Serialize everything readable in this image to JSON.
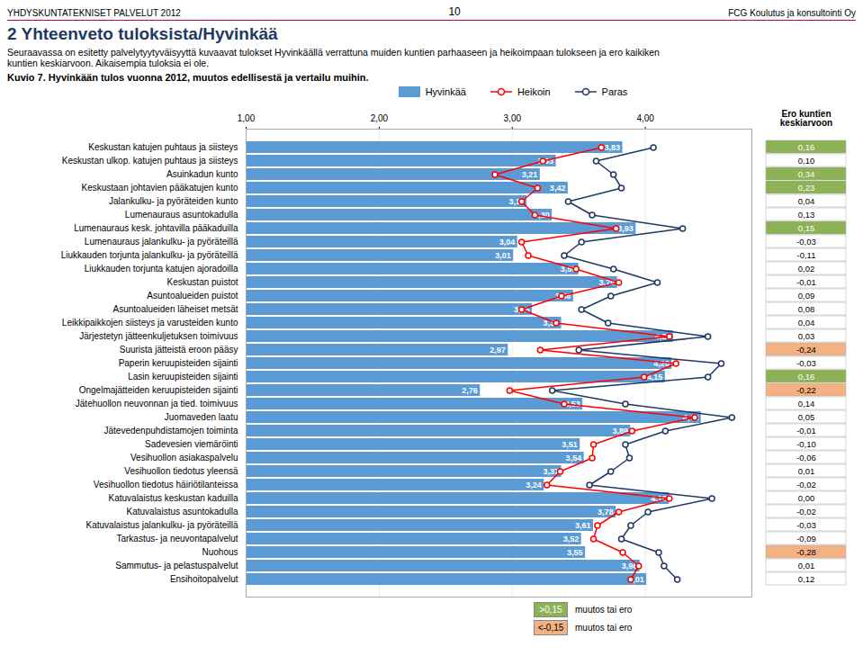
{
  "chart_data": {
    "type": "bar",
    "orientation": "horizontal",
    "title": "2 Yhteenveto tuloksista/Hyvinkää",
    "subtitle": "Seuraavassa on esitetty palvelytyytyväisyyttä kuvaavat tulokset Hyvinkäällä verrattuna muiden kuntien parhaaseen ja heikoimpaan tulokseen ja ero kaikiken\nkuntien keskiarvoon. Aikaisempia tuloksia ei ole.",
    "annotations": [
      "YHDYSKUNTATEKNISET PALVELUT 2012",
      "10",
      "FCG Koulutus ja konsultointi Oy",
      "Kuvio 7. Hyvinkään tulos vuonna 2012, muutos edellisestä ja vertailu muihin."
    ],
    "categories": [
      "Keskustan katujen puhtaus ja siisteys",
      "Keskustan ulkop. katujen puhtaus ja siisteys",
      "Asuinkadun kunto",
      "Keskustaan johtavien pääkatujen kunto",
      "Jalankulku- ja pyöräteiden kunto",
      "Lumenauraus asuntokadulla",
      "Lumenauraus kesk. johtavilla pääkaduilla",
      "Lumenauraus jalankulku- ja pyöräteillä",
      "Liukkauden torjunta jalankulku- ja pyöräteillä",
      "Liukkauden torjunta katujen ajoradoilla",
      "Keskustan puistot",
      "Asuntoalueiden puistot",
      "Asuntoalueiden läheiset metsät",
      "Leikkipaikkojen siisteys ja varusteiden kunto",
      "Järjestetyn jätteenkuljetuksen toimivuus",
      "Suurista jätteistä eroon pääsy",
      "Paperin keruupisteiden sijainti",
      "Lasin keruupisteiden sijainti",
      "Ongelmajätteiden keruupisteiden sijainti",
      "Jätehuollon neuvonnan ja tied. toimivuus",
      "Juomaveden laatu",
      "Jätevedenpuhdistamojen toiminta",
      "Sadevesien viemäröinti",
      "Vesihuollon asiakaspalvelu",
      "Vesihuollon tiedotus yleensä",
      "Vesihuollon tiedotus häiriötilanteissa",
      "Katuvalaistus keskustan kaduilla",
      "Katuvalaistus asuntokadulla",
      "Katuvalaistus jalankulku- ja pyöräteillä",
      "Tarkastus- ja neuvontapalvelut",
      "Nuohous",
      "Sammutus- ja pelastuspalvelut",
      "Ensihoitopalvelut"
    ],
    "series": [
      {
        "name": "Hyvinkää",
        "type": "bar",
        "color": "#5B9BD5",
        "values": [
          3.83,
          3.33,
          3.21,
          3.42,
          3.11,
          3.3,
          3.93,
          3.04,
          3.01,
          3.5,
          3.79,
          3.46,
          3.15,
          3.37,
          4.21,
          2.97,
          4.2,
          4.15,
          2.76,
          3.53,
          4.42,
          3.89,
          3.51,
          3.54,
          3.37,
          3.24,
          4.18,
          3.78,
          3.61,
          3.52,
          3.55,
          3.96,
          4.01
        ],
        "value_labels": [
          "3,83",
          "3,33",
          "3,21",
          "3,42",
          "3,11",
          "3,30",
          "3,93",
          "3,04",
          "3,01",
          "3,50",
          "3,79",
          "3,46",
          "3,15",
          "3,37",
          "4,21",
          "2,97",
          "4,20",
          "4,15",
          "2,76",
          "3,53",
          "4,42",
          "3,89",
          "3,51",
          "3,54",
          "3,37",
          "3,24",
          "4,18",
          "3,78",
          "3,61",
          "3,52",
          "3,55",
          "3,96",
          "4,01"
        ]
      },
      {
        "name": "Heikoin",
        "type": "line",
        "color": "#FF0000",
        "marker": "o",
        "values": [
          3.67,
          3.23,
          2.87,
          3.19,
          3.07,
          3.17,
          3.78,
          3.07,
          3.12,
          3.48,
          3.8,
          3.37,
          3.07,
          3.33,
          4.18,
          3.21,
          4.23,
          3.99,
          2.98,
          3.39,
          4.37,
          3.9,
          3.61,
          3.6,
          3.36,
          3.26,
          4.18,
          3.8,
          3.64,
          3.61,
          3.83,
          3.95,
          3.89
        ]
      },
      {
        "name": "Paras",
        "type": "line",
        "color": "#1F3864",
        "marker": "o",
        "values": [
          4.06,
          3.63,
          3.76,
          3.82,
          3.42,
          3.6,
          4.28,
          3.52,
          3.39,
          3.76,
          4.09,
          3.74,
          3.52,
          3.72,
          4.47,
          3.5,
          4.57,
          4.47,
          3.3,
          3.85,
          4.65,
          4.15,
          3.85,
          3.88,
          3.74,
          3.58,
          4.5,
          4.02,
          3.89,
          3.82,
          4.1,
          4.14,
          4.24
        ]
      }
    ],
    "data_labels": true,
    "xlim": [
      1.0,
      4.8
    ],
    "xticks": [
      {
        "value": 1.0,
        "label": "1,00"
      },
      {
        "value": 2.0,
        "label": "2,00"
      },
      {
        "value": 3.0,
        "label": "3,00"
      },
      {
        "value": 4.0,
        "label": "4,00"
      }
    ],
    "grid": true,
    "legend": "top",
    "ero_title": "Ero kuntien\nkeskiarvoon",
    "ero_values": [
      0.16,
      0.1,
      0.34,
      0.23,
      0.04,
      0.13,
      0.15,
      -0.03,
      -0.11,
      0.02,
      -0.01,
      0.09,
      0.08,
      0.04,
      0.03,
      -0.24,
      -0.03,
      0.16,
      -0.22,
      0.14,
      0.05,
      -0.01,
      -0.1,
      -0.06,
      0.01,
      -0.02,
      0.0,
      -0.02,
      -0.03,
      -0.09,
      -0.28,
      0.01,
      0.12
    ],
    "ero_labels": [
      "0,16",
      "0,10",
      "0,34",
      "0,23",
      "0,04",
      "0,13",
      "0,15",
      "-0,03",
      "-0,11",
      "0,02",
      "-0,01",
      "0,09",
      "0,08",
      "0,04",
      "0,03",
      "-0,24",
      "-0,03",
      "0,16",
      "-0,22",
      "0,14",
      "0,05",
      "-0,01",
      "-0,10",
      "-0,06",
      "0,01",
      "-0,02",
      "0,00",
      "-0,02",
      "-0,03",
      "-0,09",
      "-0,28",
      "0,01",
      "0,12"
    ],
    "ero_thresholds": [
      {
        "value": 0.15,
        "label": ">0,15",
        "color": "#8DB255",
        "text": "muutos tai ero"
      },
      {
        "value": -0.15,
        "label": "<-0,15",
        "color": "#F4B183",
        "text": "muutos tai ero"
      }
    ]
  }
}
